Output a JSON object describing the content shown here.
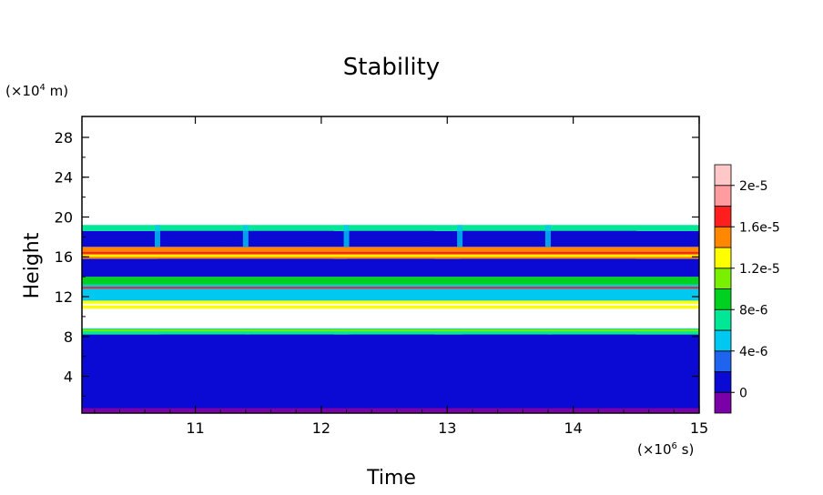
{
  "chart_data": {
    "type": "heatmap",
    "title": "Stability",
    "xlabel": "Time",
    "ylabel": "Height",
    "x_unit_label": "(×10",
    "x_unit_exp": "6",
    "x_unit_suffix": " s)",
    "y_unit_label": "(×10",
    "y_unit_exp": "4",
    "y_unit_suffix": " m)",
    "xlim": [
      10.1,
      15
    ],
    "ylim": [
      0.3,
      30.1
    ],
    "x_ticks": [
      11,
      12,
      13,
      14,
      15
    ],
    "y_ticks": [
      4,
      8,
      12,
      16,
      20,
      24,
      28
    ],
    "colorbar": {
      "labels": [
        "0",
        "4e-6",
        "8e-6",
        "1.2e-5",
        "1.6e-5",
        "2e-5"
      ],
      "label_values": [
        0,
        4e-06,
        8e-06,
        1.2e-05,
        1.6e-05,
        2e-05
      ],
      "levels": [
        -2e-06,
        0,
        2e-06,
        4e-06,
        6e-06,
        8e-06,
        1e-05,
        1.2e-05,
        1.4e-05,
        1.6e-05,
        1.8e-05,
        2e-05,
        2.2e-05
      ],
      "colors": [
        "#7a00a8",
        "#0a0ad4",
        "#1e64ee",
        "#00c8f0",
        "#00e896",
        "#00d020",
        "#78f000",
        "#ffff00",
        "#ff8800",
        "#ff1e1e",
        "#ff9ca0",
        "#ffc8c8"
      ]
    },
    "bands": [
      {
        "name": "lowest-layer",
        "y_bottom_start": 0.3,
        "y_top_start": 6.5,
        "y_top_end": 0.8,
        "value": -1e-06
      },
      {
        "name": "lower-troposphere",
        "y_bottom": 0.8,
        "y_top": 8.2,
        "value": 1e-06
      },
      {
        "name": "layer-8",
        "y_bottom": 8.2,
        "y_top": 8.8,
        "value": 6e-06
      },
      {
        "name": "gap-9-11",
        "y_bottom": 8.8,
        "y_top": 10.8,
        "value": null
      },
      {
        "name": "layer-11",
        "y_bottom": 10.8,
        "y_top": 11.6,
        "value": 1.2e-05
      },
      {
        "name": "layer-12",
        "y_bottom": 11.6,
        "y_top": 13.2,
        "value": 5e-06
      },
      {
        "name": "layer-13",
        "y_bottom": 13.2,
        "y_top": 14.0,
        "value": 9e-06
      },
      {
        "name": "layer-15",
        "y_bottom": 14.0,
        "y_top": 15.8,
        "value": 1e-06
      },
      {
        "name": "layer-16",
        "y_bottom": 15.8,
        "y_top": 17.0,
        "value": 1.5e-05
      },
      {
        "name": "layer-18",
        "y_bottom": 17.0,
        "y_top": 18.6,
        "value": 1e-06
      },
      {
        "name": "layer-19",
        "y_bottom": 18.6,
        "y_top": 19.2,
        "value": 7e-06
      }
    ],
    "pulses_x": [
      10.7,
      11.4,
      12.2,
      13.1,
      13.8
    ]
  }
}
